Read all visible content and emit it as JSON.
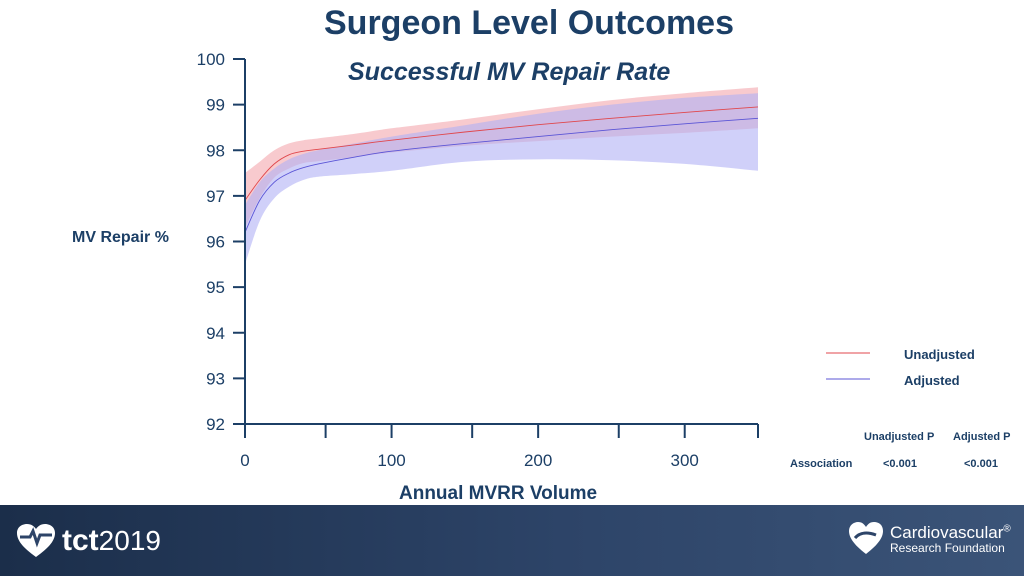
{
  "page": {
    "title": "Surgeon Level Outcomes"
  },
  "chart_data": {
    "type": "line",
    "title": "Successful MV Repair Rate",
    "xlabel": "Annual MVRR Volume",
    "ylabel": "MV Repair %",
    "xlim": [
      0,
      350
    ],
    "ylim": [
      92,
      100
    ],
    "x_ticks": [
      0,
      100,
      200,
      300
    ],
    "x_minor_ticks": [
      55,
      155,
      255,
      350
    ],
    "y_ticks": [
      92,
      93,
      94,
      95,
      96,
      97,
      98,
      99,
      100
    ],
    "series": [
      {
        "name": "Unadjusted",
        "color": "#e0474c",
        "band_color": "#f4a6ae",
        "x": [
          0,
          10,
          20,
          30,
          40,
          50,
          75,
          100,
          150,
          200,
          250,
          300,
          350
        ],
        "values": [
          96.9,
          97.35,
          97.7,
          97.9,
          97.98,
          98.02,
          98.12,
          98.22,
          98.4,
          98.56,
          98.7,
          98.83,
          98.95
        ],
        "upper": [
          97.5,
          97.75,
          98.0,
          98.15,
          98.22,
          98.26,
          98.36,
          98.48,
          98.68,
          98.9,
          99.1,
          99.25,
          99.38
        ],
        "lower": [
          96.3,
          96.95,
          97.4,
          97.6,
          97.72,
          97.76,
          97.85,
          97.95,
          98.1,
          98.2,
          98.3,
          98.38,
          98.48
        ]
      },
      {
        "name": "Adjusted",
        "color": "#5b55d6",
        "band_color": "#b0b0f5",
        "x": [
          0,
          10,
          20,
          30,
          40,
          50,
          75,
          100,
          150,
          200,
          250,
          300,
          350
        ],
        "values": [
          96.2,
          96.9,
          97.3,
          97.5,
          97.62,
          97.7,
          97.85,
          97.98,
          98.15,
          98.3,
          98.45,
          98.58,
          98.7
        ],
        "upper": [
          96.8,
          97.3,
          97.6,
          97.8,
          97.92,
          98.0,
          98.15,
          98.3,
          98.55,
          98.8,
          99.0,
          99.15,
          99.25
        ],
        "lower": [
          95.5,
          96.45,
          96.95,
          97.2,
          97.35,
          97.42,
          97.48,
          97.55,
          97.75,
          97.8,
          97.78,
          97.7,
          97.55
        ]
      }
    ],
    "legend": {
      "position": "right",
      "entries": [
        "Unadjusted",
        "Adjusted"
      ]
    }
  },
  "stats": {
    "headers": [
      "Unadjusted P",
      "Adjusted P"
    ],
    "row_label": "Association",
    "values": [
      "<0.001",
      "<0.001"
    ]
  },
  "footer": {
    "left_logo_text": "tct",
    "left_logo_year": "2019",
    "right_logo_line1": "Cardiovascular",
    "right_logo_mark": "®",
    "right_logo_line2": "Research Foundation"
  }
}
